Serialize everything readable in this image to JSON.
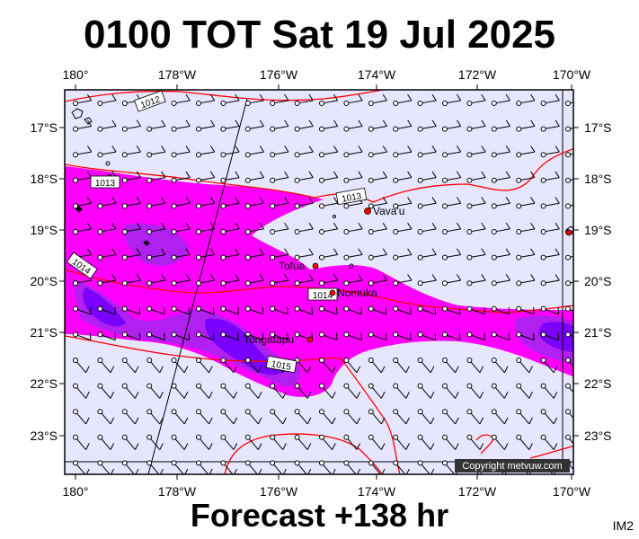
{
  "title": "0100 TOT Sat 19 Jul 2025",
  "footer": "Forecast +138 hr",
  "corner_code": "IM2",
  "copyright": "Copyright metvuw.com",
  "map": {
    "lon_labels": [
      "180°",
      "178°W",
      "176°W",
      "174°W",
      "172°W",
      "170°W"
    ],
    "lat_labels": [
      "17°S",
      "18°S",
      "19°S",
      "20°S",
      "21°S",
      "22°S",
      "23°S"
    ],
    "places": [
      {
        "name": "Vava'u"
      },
      {
        "name": "Tofua"
      },
      {
        "name": "Nomuka"
      },
      {
        "name": "Tongatapu"
      }
    ],
    "isobar_labels": [
      "1012",
      "1013",
      "1013",
      "1014",
      "1014",
      "1015"
    ],
    "colors": {
      "background": "#e6e6ff",
      "isobar": "#ff0000",
      "rain_light": "#ff00ff",
      "rain_medium": "#b020f0",
      "rain_heavy": "#7a00ff"
    }
  }
}
